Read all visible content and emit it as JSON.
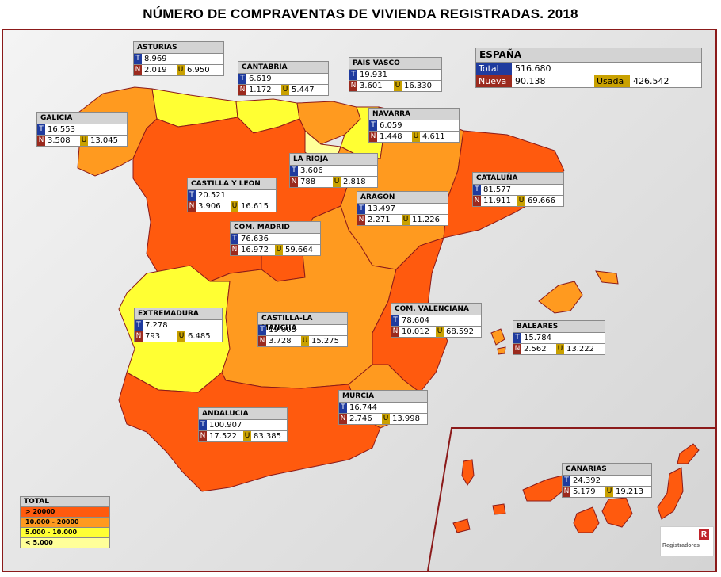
{
  "title": "NÚMERO DE COMPRAVENTAS DE VIVIENDA REGISTRADAS. 2018",
  "colors": {
    "gt20000": "#ff5a0e",
    "r10_20": "#ff9a1f",
    "r5_10": "#ffff33",
    "lt5": "#ffff99",
    "border": "#8b1a1a"
  },
  "spain": {
    "name": "ESPAÑA",
    "total_label": "Total",
    "total": "516.680",
    "nueva_label": "Nueva",
    "nueva": "90.138",
    "usada_label": "Usada",
    "usada": "426.542"
  },
  "tags": {
    "t": "T",
    "n": "N",
    "u": "U"
  },
  "regions": [
    {
      "name": "ASTURIAS",
      "t": "8.969",
      "n": "2.019",
      "u": "6.950"
    },
    {
      "name": "CANTABRIA",
      "t": "6.619",
      "n": "1.172",
      "u": "5.447"
    },
    {
      "name": "PAIS VASCO",
      "t": "19.931",
      "n": "3.601",
      "u": "16.330"
    },
    {
      "name": "GALICIA",
      "t": "16.553",
      "n": "3.508",
      "u": "13.045"
    },
    {
      "name": "NAVARRA",
      "t": "6.059",
      "n": "1.448",
      "u": "4.611"
    },
    {
      "name": "LA RIOJA",
      "t": "3.606",
      "n": "788",
      "u": "2.818"
    },
    {
      "name": "CASTILLA Y LEON",
      "t": "20.521",
      "n": "3.906",
      "u": "16.615"
    },
    {
      "name": "CATALUÑA",
      "t": "81.577",
      "n": "11.911",
      "u": "69.666"
    },
    {
      "name": "ARAGON",
      "t": "13.497",
      "n": "2.271",
      "u": "11.226"
    },
    {
      "name": "COM. MADRID",
      "t": "76.636",
      "n": "16.972",
      "u": "59.664"
    },
    {
      "name": "EXTREMADURA",
      "t": "7.278",
      "n": "793",
      "u": "6.485"
    },
    {
      "name": "CASTILLA-LA MANCHA",
      "t": "19.003",
      "n": "3.728",
      "u": "15.275"
    },
    {
      "name": "COM. VALENCIANA",
      "t": "78.604",
      "n": "10.012",
      "u": "68.592"
    },
    {
      "name": "BALEARES",
      "t": "15.784",
      "n": "2.562",
      "u": "13.222"
    },
    {
      "name": "MURCIA",
      "t": "16.744",
      "n": "2.746",
      "u": "13.998"
    },
    {
      "name": "ANDALUCIA",
      "t": "100.907",
      "n": "17.522",
      "u": "83.385"
    },
    {
      "name": "CANARIAS",
      "t": "24.392",
      "n": "5.179",
      "u": "19.213"
    }
  ],
  "legend": {
    "title": "TOTAL",
    "items": [
      "> 20000",
      "10.000 - 20000",
      "5.000 - 10.000",
      "< 5.000"
    ]
  },
  "logo": {
    "text": "Registradores",
    "mark": "R"
  }
}
